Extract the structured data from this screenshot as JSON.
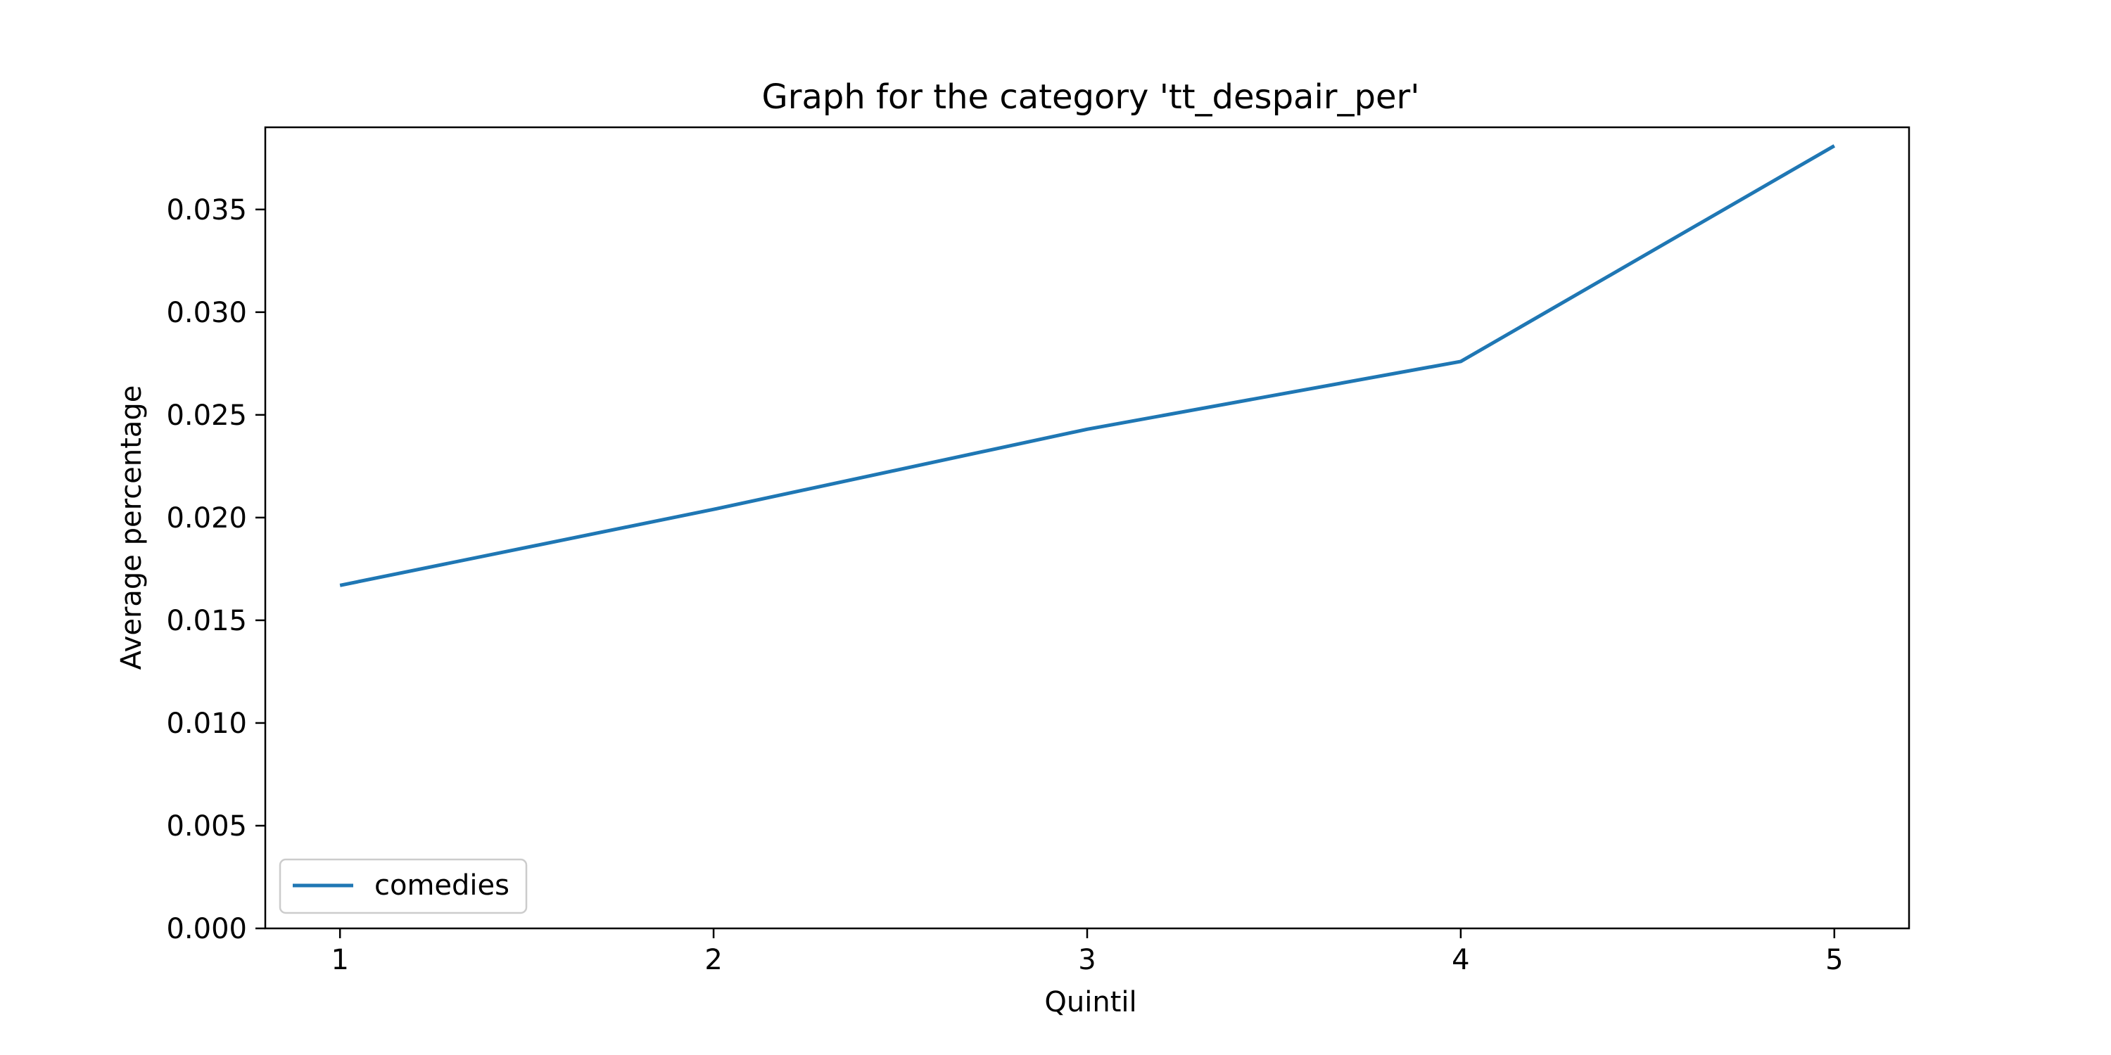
{
  "chart_data": {
    "type": "line",
    "title": "Graph for the category 'tt_despair_per'",
    "xlabel": "Quintil",
    "ylabel": "Average percentage",
    "x": [
      1,
      2,
      3,
      4,
      5
    ],
    "xticks": [
      "1",
      "2",
      "3",
      "4",
      "5"
    ],
    "xlim": [
      0.8,
      5.2
    ],
    "ylim": [
      0.0,
      0.039
    ],
    "yticks": [
      "0.000",
      "0.005",
      "0.010",
      "0.015",
      "0.020",
      "0.025",
      "0.030",
      "0.035"
    ],
    "grid": false,
    "legend_position": "lower-left",
    "series": [
      {
        "name": "comedies",
        "color": "#1f77b4",
        "values": [
          0.0167,
          0.0204,
          0.0243,
          0.0276,
          0.0381
        ]
      }
    ]
  }
}
